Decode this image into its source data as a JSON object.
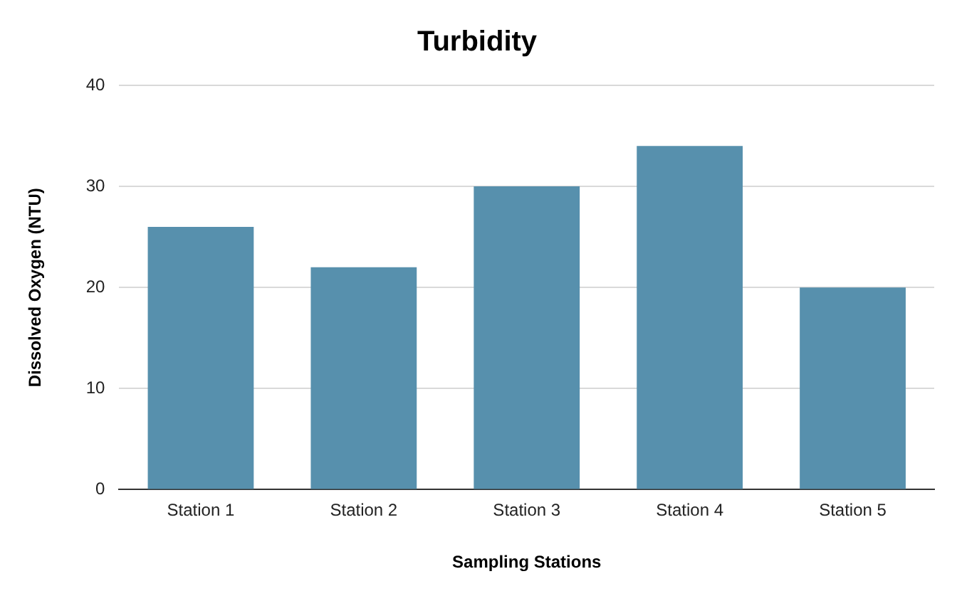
{
  "chart_data": {
    "type": "bar",
    "title": "Turbidity",
    "xlabel": "Sampling Stations",
    "ylabel": "Dissolved Oxygen (NTU)",
    "categories": [
      "Station 1",
      "Station 2",
      "Station 3",
      "Station 4",
      "Station 5"
    ],
    "values": [
      26,
      22,
      30,
      34,
      20
    ],
    "color": "#5790ad",
    "ylim": [
      0,
      40
    ],
    "yticks": [
      0,
      10,
      20,
      30,
      40
    ],
    "grid": "y",
    "legend": false
  }
}
